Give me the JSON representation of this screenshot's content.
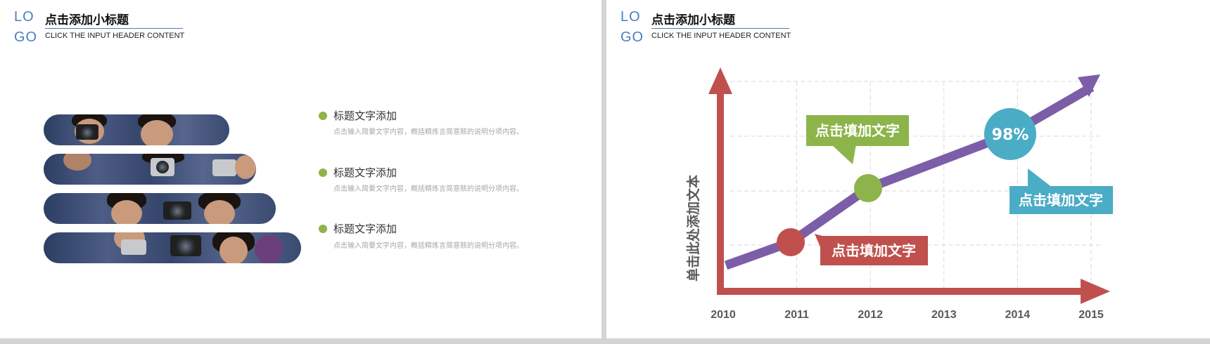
{
  "left_slide": {
    "logo": {
      "line1": "LO",
      "line2": "GO"
    },
    "title": "点击添加小标题",
    "subtitle": "CLICK THE INPUT HEADER CONTENT",
    "items": [
      {
        "title": "标题文字添加",
        "desc": "点击输入简要文字内容，概括精炼言简意赅的说明分项内容。"
      },
      {
        "title": "标题文字添加",
        "desc": "点击输入简要文字内容，概括精炼言简意赅的说明分项内容。"
      },
      {
        "title": "标题文字添加",
        "desc": "点击输入简要文字内容，概括精炼言简意赅的说明分项内容。"
      }
    ]
  },
  "right_slide": {
    "logo": {
      "line1": "LO",
      "line2": "GO"
    },
    "title": "点击添加小标题",
    "subtitle": "CLICK THE INPUT HEADER CONTENT"
  },
  "chart_data": {
    "type": "line",
    "x": [
      "2010",
      "2011",
      "2012",
      "2013",
      "2014",
      "2015"
    ],
    "ylabel": "单击此处添加文本",
    "xlabel": "",
    "markers": [
      {
        "x": "2011",
        "color": "#c0504d",
        "label": ""
      },
      {
        "x": "2012",
        "color": "#8db44a",
        "label": ""
      },
      {
        "x": "2014",
        "color": "#4bacc6",
        "label": "98%"
      }
    ],
    "callouts": [
      {
        "text": "点击填加文字",
        "color": "#c0504d",
        "anchor": "2011"
      },
      {
        "text": "点击填加文字",
        "color": "#8db44a",
        "anchor": "2012"
      },
      {
        "text": "点击填加文字",
        "color": "#4bacc6",
        "anchor": "2014"
      }
    ],
    "colors": {
      "axis": "#c0504d",
      "line": "#7b5ea7",
      "grid": "#d9d9d9"
    },
    "grid": true
  }
}
